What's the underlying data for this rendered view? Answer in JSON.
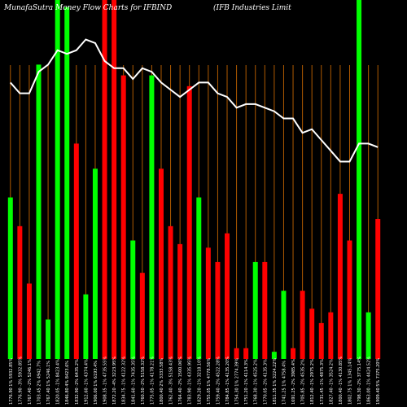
{
  "chart_data": {
    "type": "bar",
    "title_left": "MunafaSutra Money Flow  Charts for IFBIND",
    "title_right": "(IFB Industries Limit",
    "colors": {
      "background": "#000000",
      "up": "#00ff00",
      "down": "#ff0000",
      "grid": "#b05a00",
      "line": "#ffffff"
    },
    "grid": true,
    "ylim": [
      0,
      100
    ],
    "categories": [
      "1776.90 1% 5932.85%",
      "1776.90 -3% 5932.85%",
      "1767.40 -2% 5246.1%",
      "1703.45 2% 4942.7%",
      "1767.40 1% 5246.1%",
      "1820.05 -1% 8423.4%",
      "1846.80 4% 8423.6%",
      "1832.90 -2% 6435.2%",
      "1912.60 -1% 4374.4%",
      "1906.00 1% 6193.4%",
      "1908.35 -1% 4735.55%",
      "1872.20 -4% 3223.95%",
      "1834.75 -1% 4122.32%",
      "1841.60 -1% 7435.35%",
      "1760.50 -2% 5158.32%",
      "1775.05 -1% 4178.21%",
      "1800.40 2% 3333.58%",
      "1762.40 -3% 5158.43%",
      "1764.40 -2% 1500.06%",
      "1783.90 -1% 4335.95%",
      "1829.20 -1% 3218.10%",
      "1755.05 1% 4778.56%",
      "1759.40 -2% 4522.28%",
      "1784.85 -1% 4135.20%",
      "1754.30 1% 2774.39%",
      "1751.20 -1% 4114.3%",
      "1768.30 -1% 4525.2%",
      "1770.05 -2% 4135.3%",
      "1811.35 1% 3224.22%",
      "1741.25 1% 4758.4%",
      "1691.25 -2% 3985.4%",
      "1705.85 -2% 4535.2%",
      "1812.40 -1% 2975.2%",
      "1731.45 -1% 4875.3%",
      "1827.40 -1% 3524.2%",
      "1800.40 -1% 4130.85%",
      "1802.75 1% 1345.14%",
      "1798.30 -2% 3775.14%",
      "1863.00 -1% 4424.52%",
      "1909.40 5% 7375.20%"
    ],
    "series": [
      {
        "values": [
          47,
          37,
          21,
          91,
          15,
          100,
          93,
          57,
          26,
          72,
          100,
          98,
          84,
          47,
          32,
          89,
          56,
          37,
          30,
          73,
          49,
          34,
          30,
          25,
          35,
          37,
          26,
          39,
          29,
          30,
          30,
          30,
          48,
          32,
          33,
          35,
          55,
          40,
          100,
          41
        ],
        "colors": [
          "up",
          "down",
          "down",
          "up",
          "up",
          "up",
          "up",
          "down",
          "up",
          "up",
          "down",
          "down",
          "down",
          "up",
          "down",
          "up",
          "down",
          "down",
          "down",
          "down",
          "up",
          "down",
          "down",
          "down",
          "down",
          "down",
          "up",
          "down",
          "up",
          "up",
          "down",
          "down",
          "down",
          "down",
          "down",
          "down",
          "down",
          "up",
          "up",
          "down"
        ]
      }
    ],
    "bar_heights": [
      45,
      37,
      21,
      82,
      11,
      100,
      98,
      60,
      18,
      53,
      100,
      100,
      79,
      33,
      24,
      79,
      53,
      37,
      32,
      76,
      45,
      31,
      27,
      35,
      3,
      3,
      27,
      27,
      2,
      19,
      3,
      19,
      14,
      10,
      13,
      46,
      33,
      100,
      13,
      39
    ],
    "line_values": [
      77,
      74,
      74,
      80,
      82,
      86,
      85,
      86,
      89,
      88,
      83,
      81,
      81,
      78,
      81,
      80,
      77,
      75,
      73,
      75,
      77,
      77,
      74,
      73,
      70,
      71,
      71,
      70,
      69,
      67,
      67,
      63,
      64,
      61,
      58,
      55,
      55,
      60,
      60,
      59
    ]
  }
}
